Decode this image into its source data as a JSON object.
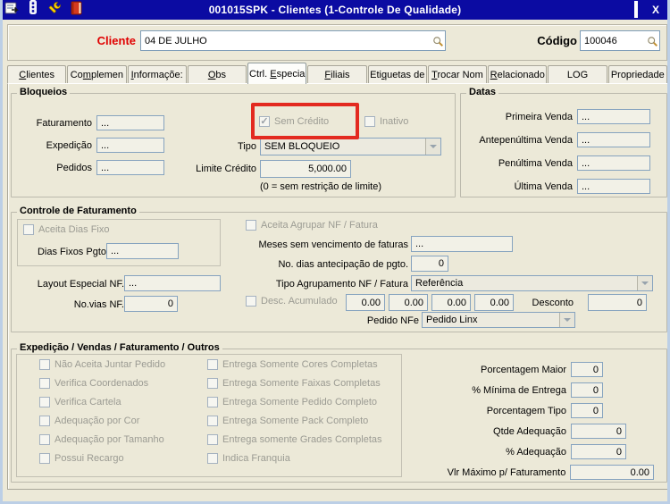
{
  "window": {
    "title": "001015SPK - Clientes (1-Controle De Qualidade)",
    "titlebar_icons": [
      "form-icon",
      "traffic-light-icon",
      "wrench-icon",
      "book-icon"
    ],
    "controls": [
      "minimize",
      "maximize",
      "close"
    ],
    "accent_color": "#0b0ba2",
    "highlight_color": "#e32a20"
  },
  "header": {
    "cliente_label": "Cliente",
    "cliente_value": "04 DE JULHO",
    "codigo_label": "Código",
    "codigo_value": "100046"
  },
  "tabs": [
    {
      "label": "Clientes",
      "accel": 0,
      "active": false
    },
    {
      "label": "Complemen",
      "accel": 2,
      "active": false
    },
    {
      "label": "Informaçõe:",
      "accel": 0,
      "active": false
    },
    {
      "label": "Obs",
      "accel": 0,
      "active": false
    },
    {
      "label": "Ctrl. Especia",
      "accel": 6,
      "active": true
    },
    {
      "label": "Filiais",
      "accel": 0,
      "active": false
    },
    {
      "label": "Etiquetas de",
      "accel": 3,
      "active": false
    },
    {
      "label": "Trocar Nom",
      "accel": 0,
      "active": false
    },
    {
      "label": "Relacionado",
      "accel": 0,
      "active": false
    },
    {
      "label": "LOG",
      "accel": -1,
      "active": false
    },
    {
      "label": "Propriedade",
      "accel": -1,
      "active": false
    }
  ],
  "bloqueios": {
    "title": "Bloqueios",
    "fields": [
      {
        "label": "Faturamento",
        "value": "..."
      },
      {
        "label": "Expedição",
        "value": "..."
      },
      {
        "label": "Pedidos",
        "value": "..."
      }
    ],
    "sem_credito": {
      "label": "Sem Crédito",
      "checked": true
    },
    "inativo": {
      "label": "Inativo",
      "checked": false
    },
    "tipo_label": "Tipo",
    "tipo_value": "SEM BLOQUEIO",
    "limite_label": "Limite Crédito",
    "limite_value": "5,000.00",
    "hint": "(0 = sem restrição de limite)"
  },
  "datas": {
    "title": "Datas",
    "fields": [
      {
        "label": "Primeira Venda",
        "value": "..."
      },
      {
        "label": "Antepenúltima Venda",
        "value": "..."
      },
      {
        "label": "Penúltima Venda",
        "value": "..."
      },
      {
        "label": "Última Venda",
        "value": "..."
      }
    ]
  },
  "controle": {
    "title": "Controle de Faturamento",
    "aceita_dias_fixo": {
      "label": "Aceita Dias Fixo",
      "checked": false
    },
    "dias_fixos_label": "Dias Fixos Pgto",
    "dias_fixos_value": "...",
    "layout_label": "Layout Especial NF.",
    "layout_value": "...",
    "vias_label": "No.vias NF.",
    "vias_value": "0",
    "aceita_agrupar": {
      "label": "Aceita Agrupar NF / Fatura",
      "checked": false
    },
    "meses_label": "Meses sem vencimento de faturas",
    "meses_value": "...",
    "dias_antecip_label": "No. dias antecipação de pgto.",
    "dias_antecip_value": "0",
    "tipo_agrup_label": "Tipo Agrupamento NF / Fatura",
    "tipo_agrup_value": "Referência",
    "desc_acumulado": {
      "label": "Desc. Acumulado",
      "checked": false
    },
    "desc_values": [
      "0.00",
      "0.00",
      "0.00",
      "0.00"
    ],
    "desconto_label": "Desconto",
    "desconto_value": "0",
    "pedido_nfe_label": "Pedido NFe",
    "pedido_nfe_value": "Pedido Linx"
  },
  "expedicao": {
    "title": "Expedição / Vendas / Faturamento / Outros",
    "col1": [
      "Não Aceita Juntar Pedido",
      "Verifica Coordenados",
      "Verifica Cartela",
      "Adequação por Cor",
      "Adequação por Tamanho",
      "Possui Recargo"
    ],
    "col2": [
      "Entrega Somente Cores Completas",
      "Entrega Somente Faixas Completas",
      "Entrega Somente Pedido Completo",
      "Entrega Somente Pack Completo",
      "Entrega somente Grades Completas",
      "Indica Franquia"
    ],
    "fields": [
      {
        "label": "Porcentagem Maior",
        "value": "0"
      },
      {
        "label": "% Mínima de Entrega",
        "value": "0"
      },
      {
        "label": "Porcentagem Tipo",
        "value": "0"
      },
      {
        "label": "Qtde Adequação",
        "value": "0"
      },
      {
        "label": "% Adequação",
        "value": "0"
      },
      {
        "label": "Vlr Máximo p/ Faturamento",
        "value": "0.00"
      }
    ]
  }
}
